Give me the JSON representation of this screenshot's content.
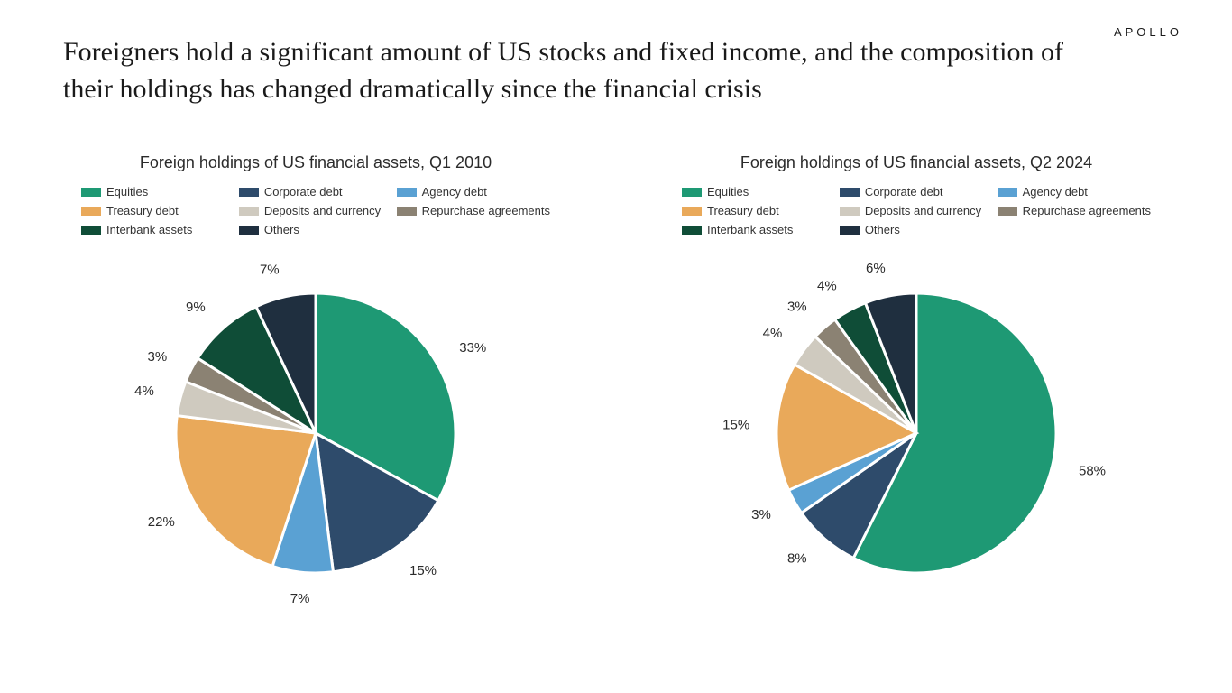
{
  "brand": "APOLLO",
  "title": "Foreigners hold a significant amount of US stocks and fixed income, and the composition of their holdings has changed dramatically since the financial crisis",
  "colors": {
    "equities": "#1e9974",
    "corporate_debt": "#2e4b6b",
    "agency_debt": "#5aa1d3",
    "treasury_debt": "#e9a95a",
    "deposits_currency": "#cfcabf",
    "repo": "#8b8273",
    "interbank": "#0f4d37",
    "others": "#1f2f3f",
    "slice_stroke": "#ffffff",
    "text": "#2b2b2b",
    "background": "#ffffff"
  },
  "categories": [
    {
      "key": "equities",
      "label": "Equities"
    },
    {
      "key": "corporate_debt",
      "label": "Corporate debt"
    },
    {
      "key": "agency_debt",
      "label": "Agency debt"
    },
    {
      "key": "treasury_debt",
      "label": "Treasury debt"
    },
    {
      "key": "deposits_currency",
      "label": "Deposits and currency"
    },
    {
      "key": "repo",
      "label": "Repurchase agreements"
    },
    {
      "key": "interbank",
      "label": "Interbank assets"
    },
    {
      "key": "others",
      "label": "Others"
    }
  ],
  "charts": [
    {
      "title": "Foreign holdings of US financial assets, Q1 2010",
      "type": "pie",
      "radius": 155,
      "start_angle_deg": -90,
      "label_offset": 30,
      "label_fontsize": 15,
      "stroke_width": 3,
      "slices": [
        {
          "key": "equities",
          "value": 33,
          "label": "33%"
        },
        {
          "key": "corporate_debt",
          "value": 15,
          "label": "15%"
        },
        {
          "key": "agency_debt",
          "value": 7,
          "label": "7%"
        },
        {
          "key": "treasury_debt",
          "value": 22,
          "label": "22%"
        },
        {
          "key": "deposits_currency",
          "value": 4,
          "label": "4%"
        },
        {
          "key": "repo",
          "value": 3,
          "label": "3%"
        },
        {
          "key": "interbank",
          "value": 9,
          "label": "9%"
        },
        {
          "key": "others",
          "value": 7,
          "label": "7%"
        }
      ]
    },
    {
      "title": "Foreign holdings of US financial assets, Q2 2024",
      "type": "pie",
      "radius": 155,
      "start_angle_deg": -90,
      "label_offset": 30,
      "label_fontsize": 15,
      "stroke_width": 3,
      "slices": [
        {
          "key": "equities",
          "value": 58,
          "label": "58%"
        },
        {
          "key": "corporate_debt",
          "value": 8,
          "label": "8%"
        },
        {
          "key": "agency_debt",
          "value": 3,
          "label": "3%"
        },
        {
          "key": "treasury_debt",
          "value": 15,
          "label": "15%"
        },
        {
          "key": "deposits_currency",
          "value": 4,
          "label": "4%"
        },
        {
          "key": "repo",
          "value": 3,
          "label": "3%"
        },
        {
          "key": "interbank",
          "value": 4,
          "label": "4%"
        },
        {
          "key": "others",
          "value": 6,
          "label": "6%"
        }
      ]
    }
  ]
}
